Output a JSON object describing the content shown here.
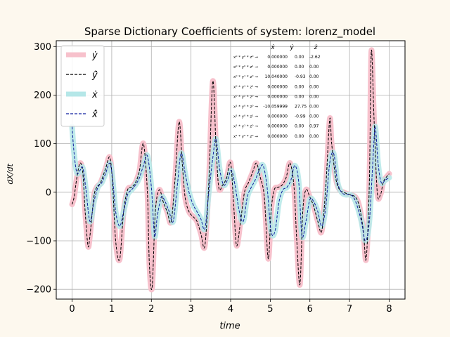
{
  "chart_data": {
    "type": "line",
    "title": "Sparse Dictionary Coefficients of system: lorenz_model",
    "xlabel": "time",
    "ylabel": "dX/dt",
    "xlim": [
      -0.4,
      8.4
    ],
    "ylim": [
      -220,
      312
    ],
    "xticks": [
      0,
      1,
      2,
      3,
      4,
      5,
      6,
      7,
      8
    ],
    "yticks": [
      -200,
      -100,
      0,
      100,
      200,
      300
    ],
    "grid": true,
    "legend_position": "top-left",
    "colors": {
      "ydot": "#f7c1cc",
      "yhat": "#000000",
      "xdot": "#b5e7e8",
      "xhat": "#1020a0",
      "background": "#fdf8ee"
    },
    "legend": [
      {
        "key": "ydot",
        "label": "ẏ",
        "style": "thick"
      },
      {
        "key": "yhat",
        "label": "ŷ̇",
        "style": "dashed"
      },
      {
        "key": "xdot",
        "label": "ẋ",
        "style": "thick"
      },
      {
        "key": "xhat",
        "label": "x̂̇",
        "style": "dashed"
      }
    ],
    "series_y": {
      "t": [
        0,
        0.05,
        0.12,
        0.2,
        0.27,
        0.33,
        0.4,
        0.45,
        0.55,
        0.62,
        0.72,
        0.85,
        0.95,
        1.02,
        1.1,
        1.2,
        1.3,
        1.4,
        1.5,
        1.6,
        1.7,
        1.8,
        1.9,
        1.95,
        2.02,
        2.1,
        2.2,
        2.3,
        2.4,
        2.5,
        2.6,
        2.7,
        2.78,
        2.85,
        2.95,
        3.05,
        3.15,
        3.25,
        3.35,
        3.45,
        3.55,
        3.63,
        3.7,
        3.8,
        3.9,
        4.0,
        4.08,
        4.15,
        4.25,
        4.35,
        4.45,
        4.55,
        4.65,
        4.75,
        4.85,
        4.95,
        5.02,
        5.1,
        5.2,
        5.3,
        5.4,
        5.5,
        5.6,
        5.67,
        5.75,
        5.82,
        5.9,
        6.0,
        6.1,
        6.2,
        6.3,
        6.4,
        6.5,
        6.55,
        6.65,
        6.75,
        6.85,
        7.0,
        7.15,
        7.25,
        7.35,
        7.42,
        7.5,
        7.55,
        7.62,
        7.7,
        7.78,
        7.85,
        7.92,
        8.0
      ],
      "y": [
        -25,
        -10,
        30,
        60,
        40,
        -40,
        -110,
        -90,
        -10,
        10,
        20,
        50,
        72,
        20,
        -100,
        -138,
        -40,
        5,
        10,
        20,
        45,
        100,
        0,
        -150,
        -195,
        -40,
        5,
        -20,
        -40,
        -60,
        30,
        145,
        60,
        -10,
        -40,
        -50,
        -60,
        -85,
        -110,
        20,
        228,
        100,
        10,
        15,
        30,
        60,
        -30,
        -110,
        -60,
        0,
        20,
        40,
        60,
        30,
        -10,
        -137,
        -40,
        5,
        10,
        15,
        30,
        60,
        10,
        -100,
        -190,
        -40,
        5,
        -10,
        -30,
        -60,
        -80,
        10,
        150,
        100,
        30,
        5,
        0,
        -5,
        -10,
        -30,
        -80,
        -137,
        20,
        290,
        150,
        0,
        -5,
        20,
        30,
        38
      ]
    },
    "series_x": {
      "t": [
        0,
        0.05,
        0.12,
        0.2,
        0.27,
        0.35,
        0.45,
        0.55,
        0.65,
        0.75,
        0.85,
        0.95,
        1.02,
        1.1,
        1.2,
        1.3,
        1.4,
        1.5,
        1.6,
        1.7,
        1.8,
        1.9,
        2.0,
        2.08,
        2.15,
        2.25,
        2.35,
        2.45,
        2.55,
        2.65,
        2.75,
        2.85,
        2.95,
        3.05,
        3.15,
        3.25,
        3.35,
        3.45,
        3.55,
        3.63,
        3.72,
        3.82,
        3.92,
        4.02,
        4.12,
        4.22,
        4.32,
        4.42,
        4.52,
        4.62,
        4.72,
        4.82,
        4.92,
        5.02,
        5.12,
        5.22,
        5.32,
        5.42,
        5.52,
        5.62,
        5.72,
        5.8,
        5.9,
        6.0,
        6.1,
        6.2,
        6.3,
        6.4,
        6.5,
        6.6,
        6.7,
        6.8,
        6.9,
        7.0,
        7.1,
        7.2,
        7.3,
        7.4,
        7.5,
        7.6,
        7.65,
        7.72,
        7.8,
        7.9,
        8.0
      ],
      "y": [
        135,
        80,
        40,
        45,
        50,
        5,
        -60,
        -20,
        10,
        20,
        40,
        60,
        30,
        -40,
        -70,
        -40,
        -5,
        5,
        15,
        30,
        55,
        75,
        10,
        -90,
        -50,
        -10,
        -20,
        -40,
        -60,
        10,
        80,
        40,
        0,
        -25,
        -40,
        -55,
        -75,
        0,
        70,
        110,
        50,
        15,
        25,
        45,
        10,
        -40,
        -60,
        -10,
        10,
        25,
        45,
        55,
        10,
        -80,
        -80,
        -20,
        5,
        10,
        25,
        55,
        20,
        -90,
        -60,
        -15,
        -20,
        -40,
        -70,
        -30,
        60,
        80,
        20,
        0,
        -5,
        -5,
        -10,
        -30,
        -60,
        -100,
        -60,
        80,
        135,
        60,
        20,
        25,
        30
      ]
    },
    "table": {
      "headers": [
        "ẋ",
        "ẏ",
        "ż"
      ],
      "rows": [
        {
          "term": "x⁰ * y⁰ * z⁰ →",
          "vals": [
            "0.000000",
            "0.00",
            "-2.62"
          ]
        },
        {
          "term": "x⁰ * y⁰ * z¹ →",
          "vals": [
            "0.000000",
            "0.00",
            "0.00"
          ]
        },
        {
          "term": "x⁰ * y¹ * z⁰ →",
          "vals": [
            "10.040000",
            "-0.93",
            "0.00"
          ]
        },
        {
          "term": "x⁰ * y¹ * z¹ →",
          "vals": [
            "0.000000",
            "0.00",
            "0.00"
          ]
        },
        {
          "term": "x⁰ * y² * z⁰ →",
          "vals": [
            "0.000000",
            "0.00",
            "0.00"
          ]
        },
        {
          "term": "x¹ * y⁰ * z⁰ →",
          "vals": [
            "-10.059999",
            "27.75",
            "0.00"
          ]
        },
        {
          "term": "x¹ * y⁰ * z¹ →",
          "vals": [
            "0.000000",
            "-0.99",
            "0.00"
          ]
        },
        {
          "term": "x¹ * y¹ * z⁰ →",
          "vals": [
            "0.000000",
            "0.00",
            "0.97"
          ]
        },
        {
          "term": "x² * y⁰ * z⁰ →",
          "vals": [
            "0.000000",
            "0.00",
            "0.00"
          ]
        }
      ]
    }
  }
}
